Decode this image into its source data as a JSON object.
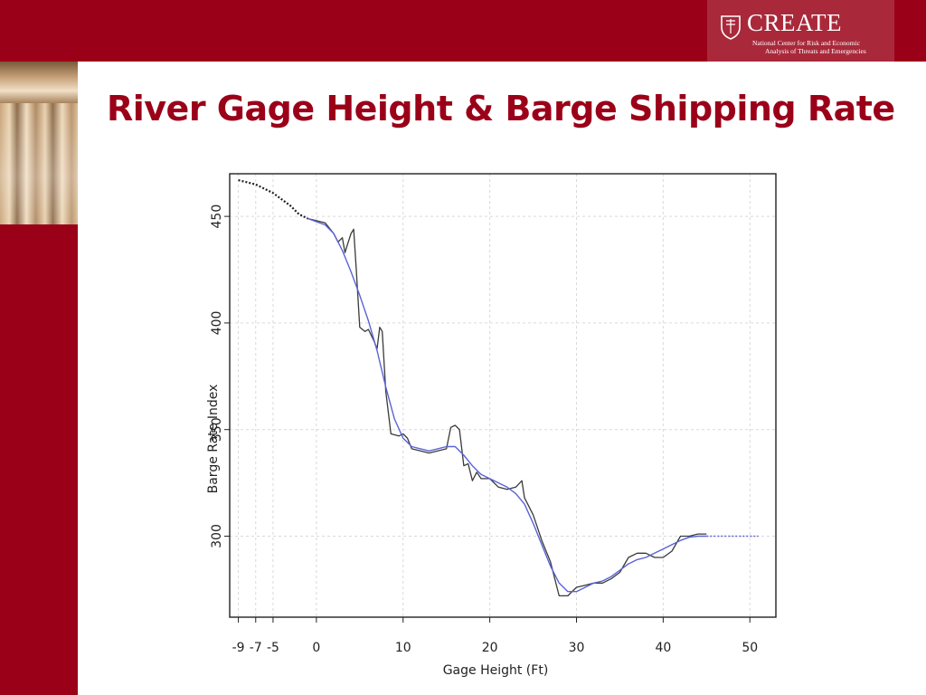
{
  "slide": {
    "title": "River Gage Height & Barge Shipping Rate",
    "colors": {
      "brand": "#9b0019",
      "logo_panel": "#a9293a"
    }
  },
  "logo": {
    "name": "CREATE",
    "subtitle_line1": "National Center for Risk and Economic",
    "subtitle_line2": "Analysis of Threats and Emergencies",
    "icon": "shield-icon"
  },
  "chart_data": {
    "type": "line",
    "xlabel": "Gage Height (Ft)",
    "ylabel": "Barge Rate Index",
    "xlim": [
      -10,
      53
    ],
    "ylim": [
      262,
      470
    ],
    "x_ticks": [
      -9,
      -7,
      -5,
      0,
      10,
      20,
      30,
      40,
      50
    ],
    "y_ticks": [
      300,
      350,
      400,
      450
    ],
    "grid": true,
    "series": [
      {
        "style": "observed",
        "color": "#3a3a3a",
        "points": [
          [
            -1,
            449
          ],
          [
            1,
            447
          ],
          [
            2,
            442
          ],
          [
            2.5,
            438
          ],
          [
            3,
            440
          ],
          [
            3.3,
            433
          ],
          [
            3.6,
            437
          ],
          [
            4,
            442
          ],
          [
            4.3,
            444
          ],
          [
            4.6,
            425
          ],
          [
            5,
            398
          ],
          [
            5.6,
            396
          ],
          [
            6,
            397
          ],
          [
            6.6,
            392
          ],
          [
            7,
            388
          ],
          [
            7.3,
            398
          ],
          [
            7.6,
            396
          ],
          [
            8,
            368
          ],
          [
            8.6,
            348
          ],
          [
            9.5,
            347
          ],
          [
            10,
            348
          ],
          [
            10.5,
            346
          ],
          [
            11,
            341
          ],
          [
            12,
            340
          ],
          [
            13,
            339
          ],
          [
            14,
            340
          ],
          [
            15,
            341
          ],
          [
            15.5,
            351
          ],
          [
            16,
            352
          ],
          [
            16.5,
            350
          ],
          [
            17,
            333
          ],
          [
            17.5,
            334
          ],
          [
            18,
            326
          ],
          [
            18.5,
            330
          ],
          [
            19,
            327
          ],
          [
            20,
            327
          ],
          [
            21,
            323
          ],
          [
            22,
            322
          ],
          [
            23,
            323
          ],
          [
            23.7,
            326
          ],
          [
            24,
            318
          ],
          [
            25,
            310
          ],
          [
            26,
            298
          ],
          [
            27,
            288
          ],
          [
            28,
            272
          ],
          [
            29,
            272
          ],
          [
            30,
            276
          ],
          [
            31,
            277
          ],
          [
            32,
            278
          ],
          [
            33,
            278
          ],
          [
            34,
            280
          ],
          [
            35,
            283
          ],
          [
            36,
            290
          ],
          [
            37,
            292
          ],
          [
            38,
            292
          ],
          [
            39,
            290
          ],
          [
            40,
            290
          ],
          [
            41,
            293
          ],
          [
            42,
            300
          ],
          [
            43,
            300
          ],
          [
            44,
            301
          ],
          [
            45,
            301
          ]
        ]
      },
      {
        "style": "smoothed",
        "color": "#5a63d6",
        "points": [
          [
            -1,
            449
          ],
          [
            1,
            446
          ],
          [
            2,
            442
          ],
          [
            3,
            434
          ],
          [
            4,
            424
          ],
          [
            5,
            413
          ],
          [
            6,
            401
          ],
          [
            7,
            387
          ],
          [
            8,
            370
          ],
          [
            9,
            355
          ],
          [
            10,
            346
          ],
          [
            11,
            342
          ],
          [
            12,
            341
          ],
          [
            13,
            340
          ],
          [
            14,
            341
          ],
          [
            15,
            342
          ],
          [
            16,
            342
          ],
          [
            17,
            338
          ],
          [
            18,
            333
          ],
          [
            19,
            329
          ],
          [
            20,
            327
          ],
          [
            21,
            325
          ],
          [
            22,
            323
          ],
          [
            23,
            320
          ],
          [
            24,
            315
          ],
          [
            25,
            306
          ],
          [
            26,
            296
          ],
          [
            27,
            286
          ],
          [
            28,
            278
          ],
          [
            29,
            274
          ],
          [
            30,
            274
          ],
          [
            31,
            276
          ],
          [
            32,
            278
          ],
          [
            33,
            279
          ],
          [
            34,
            281
          ],
          [
            35,
            284
          ],
          [
            36,
            287
          ],
          [
            37,
            289
          ],
          [
            38,
            290
          ],
          [
            39,
            292
          ],
          [
            40,
            294
          ],
          [
            41,
            296
          ],
          [
            42,
            298
          ],
          [
            43,
            299.5
          ],
          [
            44,
            300
          ],
          [
            45,
            300
          ]
        ]
      },
      {
        "style": "extrapolated",
        "color": "#1f1f1f",
        "points": [
          [
            -9,
            467
          ],
          [
            -8,
            466
          ],
          [
            -7,
            465
          ],
          [
            -6,
            463
          ],
          [
            -5,
            461
          ],
          [
            -4,
            458
          ],
          [
            -3,
            455
          ],
          [
            -2,
            451
          ],
          [
            -1,
            449
          ]
        ]
      },
      {
        "style": "extrapolated",
        "color": "#5a63d6",
        "points": [
          [
            45,
            300
          ],
          [
            47,
            300
          ],
          [
            49,
            300
          ],
          [
            51,
            300
          ]
        ]
      }
    ]
  }
}
